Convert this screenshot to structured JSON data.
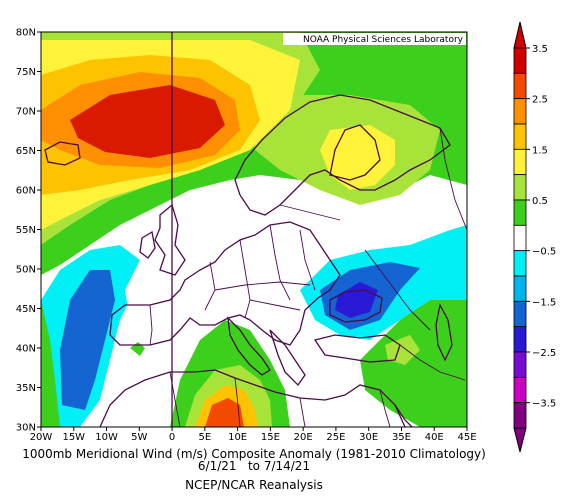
{
  "credit": "NOAA Physical Sciences Laboratory",
  "caption": {
    "line1": "1000mb Meridional Wind (m/s) Composite Anomaly (1981-2010 Climatology)",
    "line2": "6/1/21   to 7/14/21",
    "line3": "NCEP/NCAR Reanalysis"
  },
  "axes": {
    "lon_ticks": [
      "20W",
      "15W",
      "10W",
      "5W",
      "0",
      "5E",
      "10E",
      "15E",
      "20E",
      "25E",
      "30E",
      "35E",
      "40E",
      "45E"
    ],
    "lat_ticks": [
      "30N",
      "35N",
      "40N",
      "45N",
      "50N",
      "55N",
      "60N",
      "65N",
      "70N",
      "75N",
      "80N"
    ],
    "lon_range": [
      -20,
      45
    ],
    "lat_range": [
      30,
      80
    ],
    "grid": false
  },
  "colorbar": {
    "labels": [
      "3.5",
      "2.5",
      "1.5",
      "0.5",
      "−0.5",
      "−1.5",
      "−2.5",
      "−3.5"
    ],
    "colors": [
      "#d10000",
      "#f44a00",
      "#fd8f00",
      "#fdc200",
      "#fff33a",
      "#a8e33a",
      "#3ccf1c",
      "#ffffff",
      "#00f0f6",
      "#00b4f0",
      "#1464d2",
      "#2a1ad6",
      "#7c0ad6",
      "#cc00c0",
      "#800080"
    ]
  }
}
